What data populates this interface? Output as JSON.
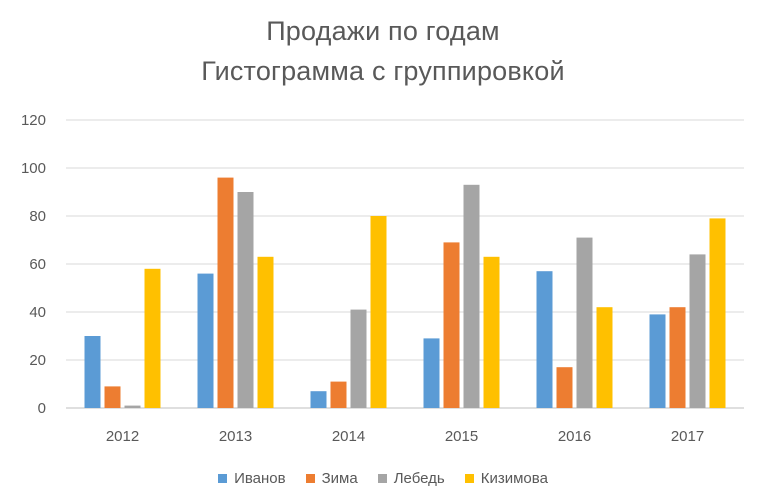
{
  "chart_data": {
    "type": "bar",
    "title": "Продажи по годам",
    "subtitle": "Гистограмма с группировкой",
    "categories": [
      "2012",
      "2013",
      "2014",
      "2015",
      "2016",
      "2017"
    ],
    "series": [
      {
        "name": "Иванов",
        "color": "#5B9BD5",
        "values": [
          30,
          56,
          7,
          29,
          57,
          39
        ]
      },
      {
        "name": "Зима",
        "color": "#ED7D31",
        "values": [
          9,
          96,
          11,
          69,
          17,
          42
        ]
      },
      {
        "name": "Лебедь",
        "color": "#A5A5A5",
        "values": [
          1,
          90,
          41,
          93,
          71,
          64
        ]
      },
      {
        "name": "Кизимова",
        "color": "#FFC000",
        "values": [
          58,
          63,
          80,
          63,
          42,
          79
        ]
      }
    ],
    "yticks": [
      "0",
      "20",
      "40",
      "60",
      "80",
      "100",
      "120"
    ],
    "ylim": [
      0,
      120
    ],
    "grid": true,
    "legend_position": "bottom",
    "xlabel": "",
    "ylabel": ""
  }
}
